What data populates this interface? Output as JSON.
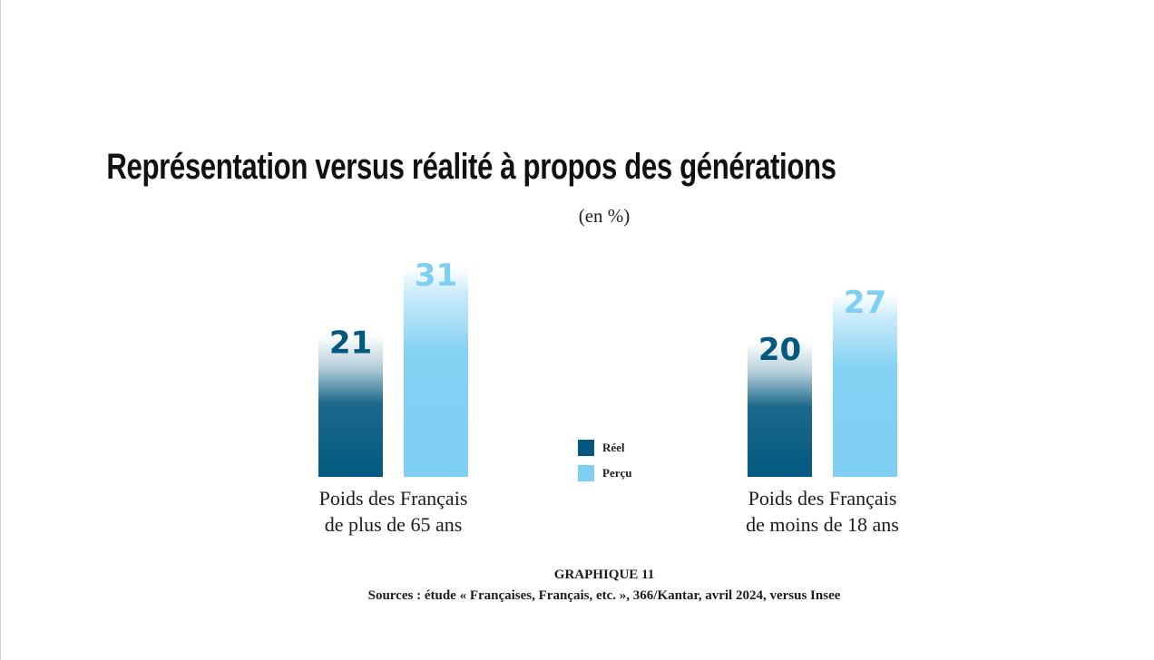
{
  "page": {
    "title": "Représentation versus réalité à propos des générations",
    "subtitle": "(en %)",
    "caption_title": "GRAPHIQUE 11",
    "caption_source": "Sources : étude « Françaises, Français, etc. », 366/Kantar, avril 2024, versus Insee"
  },
  "chart_data": {
    "type": "bar",
    "title": "Représentation versus réalité à propos des générations",
    "subtitle": "(en %)",
    "categories": [
      [
        "Poids des Français",
        "de plus de 65 ans"
      ],
      [
        "Poids des Français",
        "de moins de 18 ans"
      ]
    ],
    "series": [
      {
        "name": "Réel",
        "values": [
          21,
          20
        ],
        "color": "#02597f"
      },
      {
        "name": "Perçu",
        "values": [
          31,
          27
        ],
        "color": "#7ecff3"
      }
    ],
    "xlabel": "",
    "ylabel": "",
    "ylim": [
      0,
      35
    ],
    "grid": false,
    "legend_position": "center",
    "data_labels": true
  }
}
